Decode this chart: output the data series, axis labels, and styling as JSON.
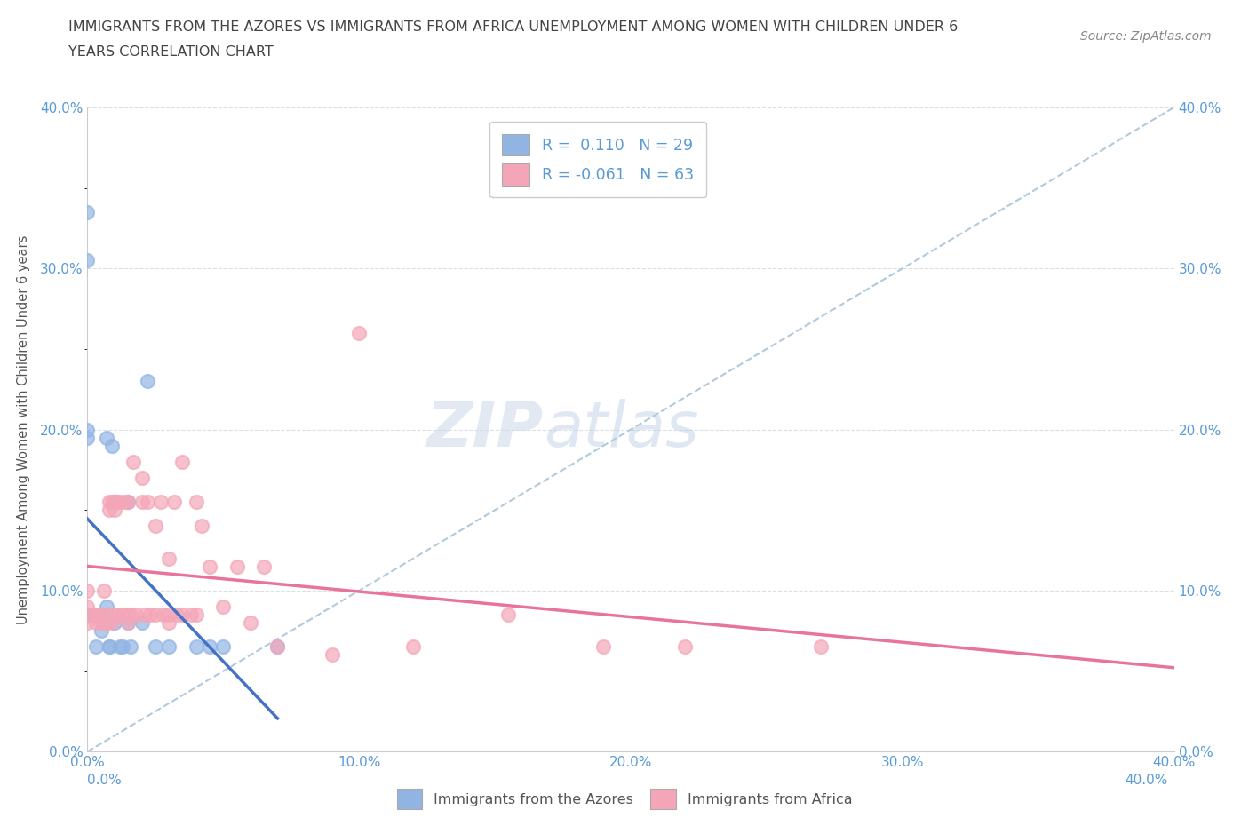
{
  "title1": "IMMIGRANTS FROM THE AZORES VS IMMIGRANTS FROM AFRICA UNEMPLOYMENT AMONG WOMEN WITH CHILDREN UNDER 6",
  "title2": "YEARS CORRELATION CHART",
  "source": "Source: ZipAtlas.com",
  "ylabel_label": "Unemployment Among Women with Children Under 6 years",
  "legend_r1": "R =  0.110   N = 29",
  "legend_r2": "R = -0.061   N = 63",
  "azores_color": "#92b4e3",
  "africa_color": "#f4a6b8",
  "azores_line_color": "#4472c4",
  "africa_line_color": "#e8749a",
  "trend_line_color": "#a8c4d8",
  "xmin": 0.0,
  "xmax": 0.4,
  "ymin": 0.0,
  "ymax": 0.4,
  "azores_x": [
    0.0,
    0.0,
    0.0,
    0.0,
    0.0,
    0.002,
    0.003,
    0.005,
    0.005,
    0.007,
    0.007,
    0.008,
    0.008,
    0.009,
    0.01,
    0.01,
    0.012,
    0.013,
    0.015,
    0.015,
    0.016,
    0.02,
    0.022,
    0.025,
    0.03,
    0.04,
    0.045,
    0.05,
    0.07
  ],
  "azores_y": [
    0.335,
    0.305,
    0.2,
    0.195,
    0.085,
    0.085,
    0.065,
    0.085,
    0.075,
    0.195,
    0.09,
    0.065,
    0.065,
    0.19,
    0.155,
    0.08,
    0.065,
    0.065,
    0.155,
    0.08,
    0.065,
    0.08,
    0.23,
    0.065,
    0.065,
    0.065,
    0.065,
    0.065,
    0.065
  ],
  "africa_x": [
    0.0,
    0.0,
    0.0,
    0.0,
    0.003,
    0.003,
    0.004,
    0.005,
    0.005,
    0.006,
    0.007,
    0.007,
    0.008,
    0.008,
    0.009,
    0.009,
    0.01,
    0.01,
    0.01,
    0.011,
    0.011,
    0.012,
    0.013,
    0.014,
    0.015,
    0.015,
    0.015,
    0.016,
    0.017,
    0.018,
    0.02,
    0.02,
    0.021,
    0.022,
    0.023,
    0.025,
    0.025,
    0.027,
    0.028,
    0.03,
    0.03,
    0.03,
    0.032,
    0.033,
    0.035,
    0.035,
    0.038,
    0.04,
    0.04,
    0.042,
    0.045,
    0.05,
    0.055,
    0.06,
    0.065,
    0.07,
    0.09,
    0.1,
    0.12,
    0.155,
    0.19,
    0.22,
    0.27
  ],
  "africa_y": [
    0.1,
    0.09,
    0.085,
    0.08,
    0.085,
    0.08,
    0.085,
    0.085,
    0.08,
    0.1,
    0.085,
    0.08,
    0.155,
    0.15,
    0.155,
    0.08,
    0.155,
    0.15,
    0.085,
    0.155,
    0.085,
    0.155,
    0.085,
    0.155,
    0.155,
    0.085,
    0.08,
    0.085,
    0.18,
    0.085,
    0.17,
    0.155,
    0.085,
    0.155,
    0.085,
    0.14,
    0.085,
    0.155,
    0.085,
    0.12,
    0.085,
    0.08,
    0.155,
    0.085,
    0.18,
    0.085,
    0.085,
    0.155,
    0.085,
    0.14,
    0.115,
    0.09,
    0.115,
    0.08,
    0.115,
    0.065,
    0.06,
    0.26,
    0.065,
    0.085,
    0.065,
    0.065,
    0.065
  ],
  "watermark_zip": "ZIP",
  "watermark_atlas": "atlas",
  "background_color": "#ffffff",
  "grid_color": "#e8e8e8",
  "tick_color": "#5b9bd5",
  "label_color": "#555555"
}
